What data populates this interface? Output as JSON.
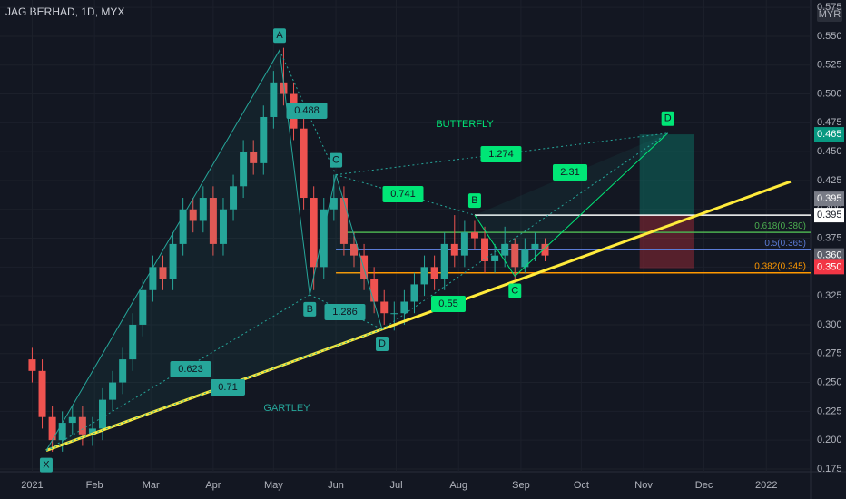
{
  "chart_data": {
    "type": "candlestick",
    "title": "JAG BERHAD, 1D, MYX",
    "currency": "MYR",
    "x": [
      0,
      5,
      10,
      15,
      20,
      25,
      30,
      35,
      40,
      45,
      50,
      55,
      60,
      65,
      70,
      75,
      80,
      85,
      90,
      95,
      100,
      105,
      110,
      115,
      120,
      125,
      130,
      135,
      140,
      145,
      150,
      155,
      160,
      165,
      170,
      175,
      180,
      185,
      190,
      195,
      200,
      205,
      210,
      215,
      220,
      225,
      230,
      235,
      240,
      245,
      250,
      255
    ],
    "open": [
      0.27,
      0.26,
      0.22,
      0.2,
      0.215,
      0.22,
      0.205,
      0.21,
      0.235,
      0.25,
      0.27,
      0.3,
      0.33,
      0.35,
      0.34,
      0.37,
      0.4,
      0.39,
      0.41,
      0.37,
      0.4,
      0.42,
      0.45,
      0.44,
      0.48,
      0.51,
      0.5,
      0.47,
      0.41,
      0.35,
      0.4,
      0.41,
      0.37,
      0.36,
      0.34,
      0.32,
      0.31,
      0.31,
      0.32,
      0.335,
      0.35,
      0.34,
      0.37,
      0.36,
      0.38,
      0.375,
      0.355,
      0.36,
      0.37,
      0.35,
      0.365,
      0.37
    ],
    "high": [
      0.28,
      0.27,
      0.23,
      0.225,
      0.23,
      0.23,
      0.22,
      0.245,
      0.26,
      0.28,
      0.31,
      0.34,
      0.36,
      0.36,
      0.38,
      0.41,
      0.41,
      0.42,
      0.42,
      0.41,
      0.43,
      0.46,
      0.46,
      0.49,
      0.52,
      0.54,
      0.51,
      0.48,
      0.42,
      0.41,
      0.43,
      0.42,
      0.38,
      0.37,
      0.35,
      0.33,
      0.32,
      0.33,
      0.345,
      0.36,
      0.36,
      0.38,
      0.395,
      0.39,
      0.39,
      0.385,
      0.37,
      0.385,
      0.375,
      0.375,
      0.38,
      0.375
    ],
    "low": [
      0.25,
      0.21,
      0.19,
      0.19,
      0.205,
      0.195,
      0.195,
      0.2,
      0.225,
      0.24,
      0.26,
      0.29,
      0.32,
      0.33,
      0.33,
      0.36,
      0.38,
      0.38,
      0.36,
      0.36,
      0.39,
      0.41,
      0.43,
      0.43,
      0.47,
      0.49,
      0.46,
      0.4,
      0.33,
      0.34,
      0.39,
      0.36,
      0.35,
      0.33,
      0.31,
      0.3,
      0.295,
      0.3,
      0.31,
      0.325,
      0.33,
      0.33,
      0.35,
      0.35,
      0.365,
      0.345,
      0.345,
      0.35,
      0.34,
      0.345,
      0.355,
      0.355
    ],
    "close": [
      0.26,
      0.22,
      0.2,
      0.215,
      0.22,
      0.205,
      0.21,
      0.235,
      0.25,
      0.27,
      0.3,
      0.33,
      0.35,
      0.34,
      0.37,
      0.4,
      0.39,
      0.41,
      0.37,
      0.4,
      0.42,
      0.45,
      0.44,
      0.48,
      0.51,
      0.5,
      0.47,
      0.41,
      0.35,
      0.4,
      0.41,
      0.37,
      0.36,
      0.34,
      0.32,
      0.31,
      0.31,
      0.32,
      0.335,
      0.35,
      0.34,
      0.37,
      0.36,
      0.38,
      0.375,
      0.355,
      0.36,
      0.37,
      0.35,
      0.365,
      0.37,
      0.36
    ],
    "up_color": "#26a69a",
    "down_color": "#ef5350",
    "xlim": [
      -16,
      387
    ],
    "xticks": [
      {
        "value": 0,
        "label": "2021"
      },
      {
        "value": 31,
        "label": "Feb"
      },
      {
        "value": 59,
        "label": "Mar"
      },
      {
        "value": 90,
        "label": "Apr"
      },
      {
        "value": 120,
        "label": "May"
      },
      {
        "value": 151,
        "label": "Jun"
      },
      {
        "value": 181,
        "label": "Jul"
      },
      {
        "value": 212,
        "label": "Aug"
      },
      {
        "value": 243,
        "label": "Sep"
      },
      {
        "value": 273,
        "label": "Oct"
      },
      {
        "value": 304,
        "label": "Nov"
      },
      {
        "value": 334,
        "label": "Dec"
      },
      {
        "value": 365,
        "label": "2022"
      }
    ],
    "ylim": [
      0.1726,
      0.5814
    ],
    "yticks": [
      {
        "value": 0.175,
        "label": "0.175"
      },
      {
        "value": 0.2,
        "label": "0.200"
      },
      {
        "value": 0.225,
        "label": "0.225"
      },
      {
        "value": 0.25,
        "label": "0.250"
      },
      {
        "value": 0.275,
        "label": "0.275"
      },
      {
        "value": 0.3,
        "label": "0.300"
      },
      {
        "value": 0.325,
        "label": "0.325"
      },
      {
        "value": 0.35,
        "label": "0.350"
      },
      {
        "value": 0.375,
        "label": "0.375"
      },
      {
        "value": 0.4,
        "label": "0.400"
      },
      {
        "value": 0.425,
        "label": "0.425"
      },
      {
        "value": 0.45,
        "label": "0.450"
      },
      {
        "value": 0.475,
        "label": "0.475"
      },
      {
        "value": 0.5,
        "label": "0.500"
      },
      {
        "value": 0.525,
        "label": "0.525"
      },
      {
        "value": 0.55,
        "label": "0.550"
      },
      {
        "value": 0.575,
        "label": "0.575"
      }
    ],
    "grid": true,
    "trendline": {
      "x": [
        7,
        377
      ],
      "y": [
        0.191,
        0.424
      ],
      "color": "#ffeb3b"
    },
    "patterns": [
      {
        "name": "GARTLEY",
        "color": "#26a69a",
        "points": [
          {
            "label": "X",
            "x": 7,
            "y": 0.191
          },
          {
            "label": "A",
            "x": 123,
            "y": 0.538
          },
          {
            "label": "B",
            "x": 138,
            "y": 0.326
          },
          {
            "label": "C",
            "x": 151,
            "y": 0.43
          },
          {
            "label": "D",
            "x": 174,
            "y": 0.296
          }
        ],
        "ratios": [
          "0.488",
          "1.286",
          "0.623",
          "0.71"
        ]
      },
      {
        "name": "BUTTERFLY",
        "color": "#00e676",
        "points": [
          {
            "label": "B",
            "x": 220,
            "y": 0.395
          },
          {
            "label": "C",
            "x": 240,
            "y": 0.342
          },
          {
            "label": "D",
            "x": 316,
            "y": 0.466
          }
        ],
        "ratios": [
          "0.741",
          "1.274",
          "2.31",
          "0.55"
        ]
      }
    ],
    "levels": [
      {
        "x": 220,
        "value": 0.395,
        "color": "#ffffff",
        "label": null
      },
      {
        "x": 154,
        "value": 0.38,
        "color": "#4caf50",
        "label": "0.618(0.380)"
      },
      {
        "x": 151,
        "value": 0.365,
        "color": "#5b7bd5",
        "label": "0.5(0.365)"
      },
      {
        "x": 151,
        "value": 0.345,
        "color": "#ff9800",
        "label": "0.382(0.345)"
      }
    ],
    "position": {
      "x": [
        302,
        329
      ],
      "target": 0.465,
      "entry": 0.395,
      "stop": 0.349
    },
    "price_tags": [
      {
        "value": 0.465,
        "label": "0.465",
        "color": "#089981"
      },
      {
        "value": 0.395,
        "label": "0.395",
        "color": "#787b86"
      },
      {
        "value": 0.395,
        "label": "0.395",
        "color": "#ffffff"
      },
      {
        "value": 0.36,
        "label": "0.360",
        "color": "#5d606b"
      },
      {
        "value": 0.35,
        "label": "0.350",
        "color": "#f23645"
      }
    ]
  }
}
